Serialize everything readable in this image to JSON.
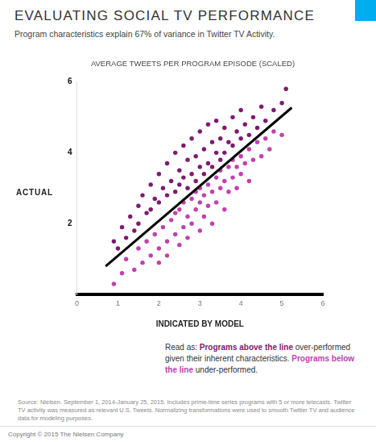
{
  "chart_data": {
    "type": "scatter",
    "title": "EVALUATING SOCIAL TV PERFORMANCE",
    "subtitle": "Program characteristics explain 67% of variance in Twitter TV Activity.",
    "chart_title": "AVERAGE TWEETS PER PROGRAM EPISODE (SCALED)",
    "x_label": "INDICATED BY MODEL",
    "y_label": "ACTUAL",
    "xlim": [
      0,
      6
    ],
    "xticks": [
      0,
      1,
      2,
      3,
      4,
      5,
      6
    ],
    "ylim": [
      0,
      6
    ],
    "yticks": [
      2,
      4,
      6
    ],
    "grid": false,
    "series": [
      {
        "name": "Programs above the line",
        "color": "#7d1a6f",
        "marker": "circle",
        "x": [
          0.9,
          1.0,
          1.1,
          1.2,
          1.3,
          1.4,
          1.5,
          1.5,
          1.6,
          1.7,
          1.8,
          1.8,
          1.9,
          2.0,
          2.0,
          2.1,
          2.2,
          2.2,
          2.3,
          2.4,
          2.4,
          2.5,
          2.5,
          2.6,
          2.6,
          2.7,
          2.7,
          2.8,
          2.8,
          2.9,
          2.9,
          3.0,
          3.0,
          3.1,
          3.1,
          3.2,
          3.2,
          3.3,
          3.3,
          3.4,
          3.4,
          3.5,
          3.5,
          3.6,
          3.6,
          3.7,
          3.8,
          3.8,
          3.9,
          4.0,
          4.0,
          4.1,
          4.2,
          4.3,
          4.4,
          4.5,
          4.6,
          4.8,
          5.0,
          5.1
        ],
        "values": [
          1.5,
          1.3,
          1.9,
          1.6,
          2.2,
          1.8,
          2.5,
          2.0,
          2.8,
          2.3,
          3.1,
          2.4,
          2.7,
          3.4,
          2.6,
          3.0,
          3.7,
          2.8,
          3.2,
          4.0,
          2.9,
          3.5,
          3.1,
          4.2,
          3.3,
          3.8,
          3.0,
          4.4,
          3.4,
          3.9,
          3.2,
          4.6,
          3.6,
          4.1,
          3.4,
          4.8,
          3.7,
          4.3,
          3.6,
          4.0,
          4.9,
          4.4,
          3.8,
          4.7,
          4.0,
          4.3,
          5.0,
          4.2,
          4.6,
          4.4,
          5.2,
          4.8,
          4.5,
          5.0,
          4.7,
          5.3,
          4.9,
          5.2,
          5.4,
          5.8
        ]
      },
      {
        "name": "Programs below the line",
        "color": "#c23fb0",
        "marker": "circle",
        "x": [
          0.9,
          1.1,
          1.2,
          1.4,
          1.5,
          1.6,
          1.7,
          1.8,
          1.9,
          2.0,
          2.0,
          2.1,
          2.2,
          2.2,
          2.3,
          2.4,
          2.4,
          2.5,
          2.5,
          2.6,
          2.6,
          2.7,
          2.7,
          2.8,
          2.8,
          2.9,
          2.9,
          3.0,
          3.0,
          3.0,
          3.1,
          3.1,
          3.2,
          3.2,
          3.3,
          3.3,
          3.4,
          3.4,
          3.5,
          3.5,
          3.6,
          3.6,
          3.7,
          3.7,
          3.8,
          3.8,
          3.9,
          3.9,
          4.0,
          4.0,
          4.1,
          4.2,
          4.2,
          4.3,
          4.4,
          4.5,
          4.6,
          4.7,
          4.8,
          5.0
        ],
        "values": [
          0.3,
          0.6,
          1.0,
          0.7,
          1.3,
          0.9,
          1.5,
          1.1,
          1.7,
          1.3,
          0.9,
          1.9,
          1.5,
          1.1,
          2.1,
          1.7,
          2.3,
          1.4,
          2.4,
          1.9,
          2.6,
          2.2,
          1.6,
          2.7,
          2.0,
          2.4,
          2.9,
          1.8,
          2.6,
          3.0,
          2.2,
          2.8,
          3.1,
          2.5,
          2.0,
          2.9,
          3.3,
          2.6,
          3.0,
          3.5,
          2.4,
          3.2,
          3.6,
          2.9,
          3.3,
          3.8,
          3.0,
          3.6,
          3.9,
          3.4,
          3.7,
          4.1,
          3.2,
          3.8,
          4.3,
          3.9,
          4.4,
          4.1,
          4.6,
          4.5
        ]
      },
      {
        "type": "line",
        "color": "#000000",
        "line_style": "solid",
        "x": [
          0.7,
          5.24
        ],
        "values": [
          0.8,
          5.27
        ]
      }
    ],
    "note": {
      "prefix": "Read as:",
      "parts": [
        "over-performed given their inherent characteristics.",
        "under-performed."
      ]
    },
    "source": "Source: Nielsen. September 1, 2014-January 25, 2015. Includes prime-time series programs with 5 or more telecasts. Twitter TV activity was measured as relevant U.S. Tweets. Normalizing transformations were used to smooth Twitter TV and audience data for modeling purposes.",
    "copyright": "Copyright © 2015 The Nielsen Company"
  }
}
